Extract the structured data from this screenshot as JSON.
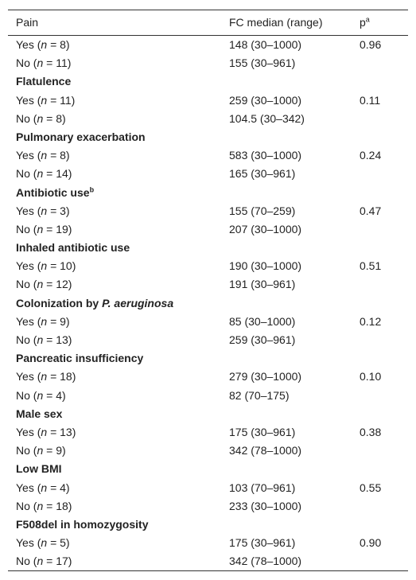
{
  "table": {
    "header": {
      "label": "Pain",
      "median": "FC median (range)",
      "p": "p",
      "p_note": "a"
    },
    "groups": [
      {
        "rows": [
          {
            "label": [
              "Yes (",
              "n",
              " = 8)"
            ],
            "median": "148 (30–1000)",
            "p": "0.96"
          },
          {
            "label": [
              "No (",
              "n",
              " = 11)"
            ],
            "median": "155 (30–961)"
          }
        ]
      },
      {
        "title": [
          "Flatulence"
        ],
        "rows": [
          {
            "label": [
              "Yes (",
              "n",
              " = 11)"
            ],
            "median": "259 (30–1000)",
            "p": "0.11"
          },
          {
            "label": [
              "No (",
              "n",
              " = 8)"
            ],
            "median": "104.5 (30–342)"
          }
        ]
      },
      {
        "title": [
          "Pulmonary exacerbation"
        ],
        "rows": [
          {
            "label": [
              "Yes (",
              "n",
              " = 8)"
            ],
            "median": "583 (30–1000)",
            "p": "0.24"
          },
          {
            "label": [
              "No (",
              "n",
              " = 14)"
            ],
            "median": "165 (30–961)"
          }
        ]
      },
      {
        "title": [
          "Antibiotic use"
        ],
        "title_note": "b",
        "rows": [
          {
            "label": [
              "Yes (",
              "n",
              " = 3)"
            ],
            "median": "155 (70–259)",
            "p": "0.47"
          },
          {
            "label": [
              "No (",
              "n",
              " = 19)"
            ],
            "median": "207 (30–1000)"
          }
        ]
      },
      {
        "title": [
          "Inhaled antibiotic use"
        ],
        "rows": [
          {
            "label": [
              "Yes (",
              "n",
              " = 10)"
            ],
            "median": "190 (30–1000)",
            "p": "0.51"
          },
          {
            "label": [
              "No (",
              "n",
              " = 12)"
            ],
            "median": "191 (30–961)"
          }
        ]
      },
      {
        "title": [
          "Colonization by ",
          "P. aeruginosa"
        ],
        "rows": [
          {
            "label": [
              "Yes (",
              "n",
              " = 9)"
            ],
            "median": "85 (30–1000)",
            "p": "0.12"
          },
          {
            "label": [
              "No (",
              "n",
              " = 13)"
            ],
            "median": "259 (30–961)"
          }
        ]
      },
      {
        "title": [
          "Pancreatic insufficiency"
        ],
        "rows": [
          {
            "label": [
              "Yes (",
              "n",
              " = 18)"
            ],
            "median": "279 (30–1000)",
            "p": "0.10"
          },
          {
            "label": [
              "No (",
              "n",
              " = 4)"
            ],
            "median": "82 (70–175)"
          }
        ]
      },
      {
        "title": [
          "Male sex"
        ],
        "rows": [
          {
            "label": [
              "Yes (",
              "n",
              " = 13)"
            ],
            "median": "175 (30–961)",
            "p": "0.38"
          },
          {
            "label": [
              "No (",
              "n",
              " = 9)"
            ],
            "median": "342 (78–1000)"
          }
        ]
      },
      {
        "title": [
          "Low BMI"
        ],
        "rows": [
          {
            "label": [
              "Yes (",
              "n",
              " = 4)"
            ],
            "median": "103 (70–961)",
            "p": "0.55"
          },
          {
            "label": [
              "No (",
              "n",
              " = 18)"
            ],
            "median": "233 (30–1000)"
          }
        ]
      },
      {
        "title": [
          "F508del in homozygosity"
        ],
        "rows": [
          {
            "label": [
              "Yes (",
              "n",
              " = 5)"
            ],
            "median": "175 (30–961)",
            "p": "0.90"
          },
          {
            "label": [
              "No (",
              "n",
              " = 17)"
            ],
            "median": "342 (78–1000)"
          }
        ]
      }
    ]
  }
}
